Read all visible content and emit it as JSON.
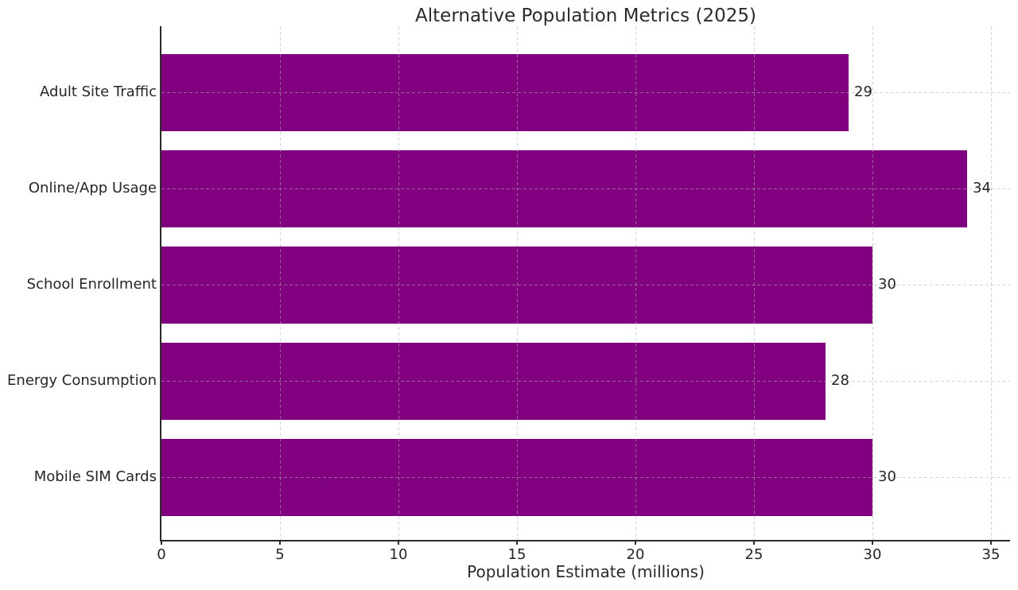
{
  "chart_data": {
    "type": "bar",
    "orientation": "horizontal",
    "title": "Alternative Population Metrics (2025)",
    "xlabel": "Population Estimate (millions)",
    "ylabel": "",
    "categories": [
      "Adult Site Traffic",
      "Online/App Usage",
      "School Enrollment",
      "Energy Consumption",
      "Mobile SIM Cards"
    ],
    "values": [
      29,
      34,
      30,
      28,
      30
    ],
    "value_labels": [
      "29",
      "34",
      "30",
      "28",
      "30"
    ],
    "xticks": [
      0,
      5,
      10,
      15,
      20,
      25,
      30,
      35
    ],
    "xlim": [
      0,
      35.8
    ],
    "bar_color": "#800080",
    "text_color": "#262626",
    "grid": "dashed gridlines on both axes, drawn over bars",
    "legend": "none"
  }
}
